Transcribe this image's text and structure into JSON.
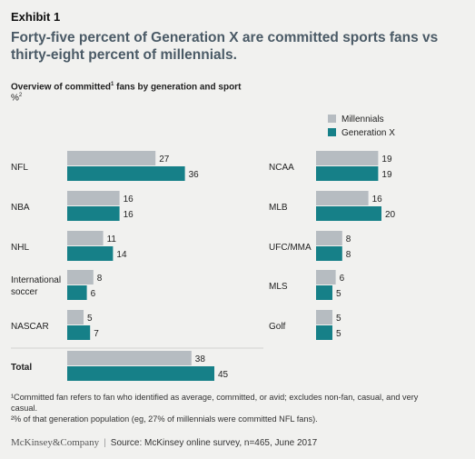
{
  "header": {
    "exhibit": "Exhibit 1",
    "title": "Forty-five percent of Generation X are committed sports fans vs thirty-eight percent of millennials.",
    "subtitle": "Overview of committed",
    "subtitle_sup": "1",
    "subtitle_rest": " fans by generation and sport",
    "unit": "%",
    "unit_sup": "2"
  },
  "colors": {
    "millennials": "#b6bcc1",
    "genx": "#168088"
  },
  "chart_data": [
    {
      "type": "bar",
      "orientation": "horizontal",
      "categories": [
        "NFL",
        "NBA",
        "NHL",
        "International soccer",
        "NASCAR",
        "Total"
      ],
      "series": [
        {
          "name": "Millennials",
          "values": [
            27,
            16,
            11,
            8,
            5,
            38
          ]
        },
        {
          "name": "Generation X",
          "values": [
            36,
            16,
            14,
            6,
            7,
            45
          ]
        }
      ]
    },
    {
      "type": "bar",
      "orientation": "horizontal",
      "categories": [
        "NCAA",
        "MLB",
        "UFC/MMA",
        "MLS",
        "Golf"
      ],
      "series": [
        {
          "name": "Millennials",
          "values": [
            19,
            16,
            8,
            6,
            5
          ]
        },
        {
          "name": "Generation X",
          "values": [
            19,
            20,
            8,
            5,
            5
          ]
        }
      ]
    }
  ],
  "legend": {
    "items": [
      "Millennials",
      "Generation X"
    ],
    "position": "top-right"
  },
  "footnotes": {
    "fn1": "¹Committed fan refers to fan who identified as average, committed, or avid; excludes non-fan, casual, and very casual.",
    "fn2": "²% of that generation population (eg, 27% of millennials were committed NFL fans)."
  },
  "source": {
    "logo": "McKinsey&Company",
    "separator": "|",
    "text": "Source: McKinsey online survey, n=465, June 2017"
  }
}
